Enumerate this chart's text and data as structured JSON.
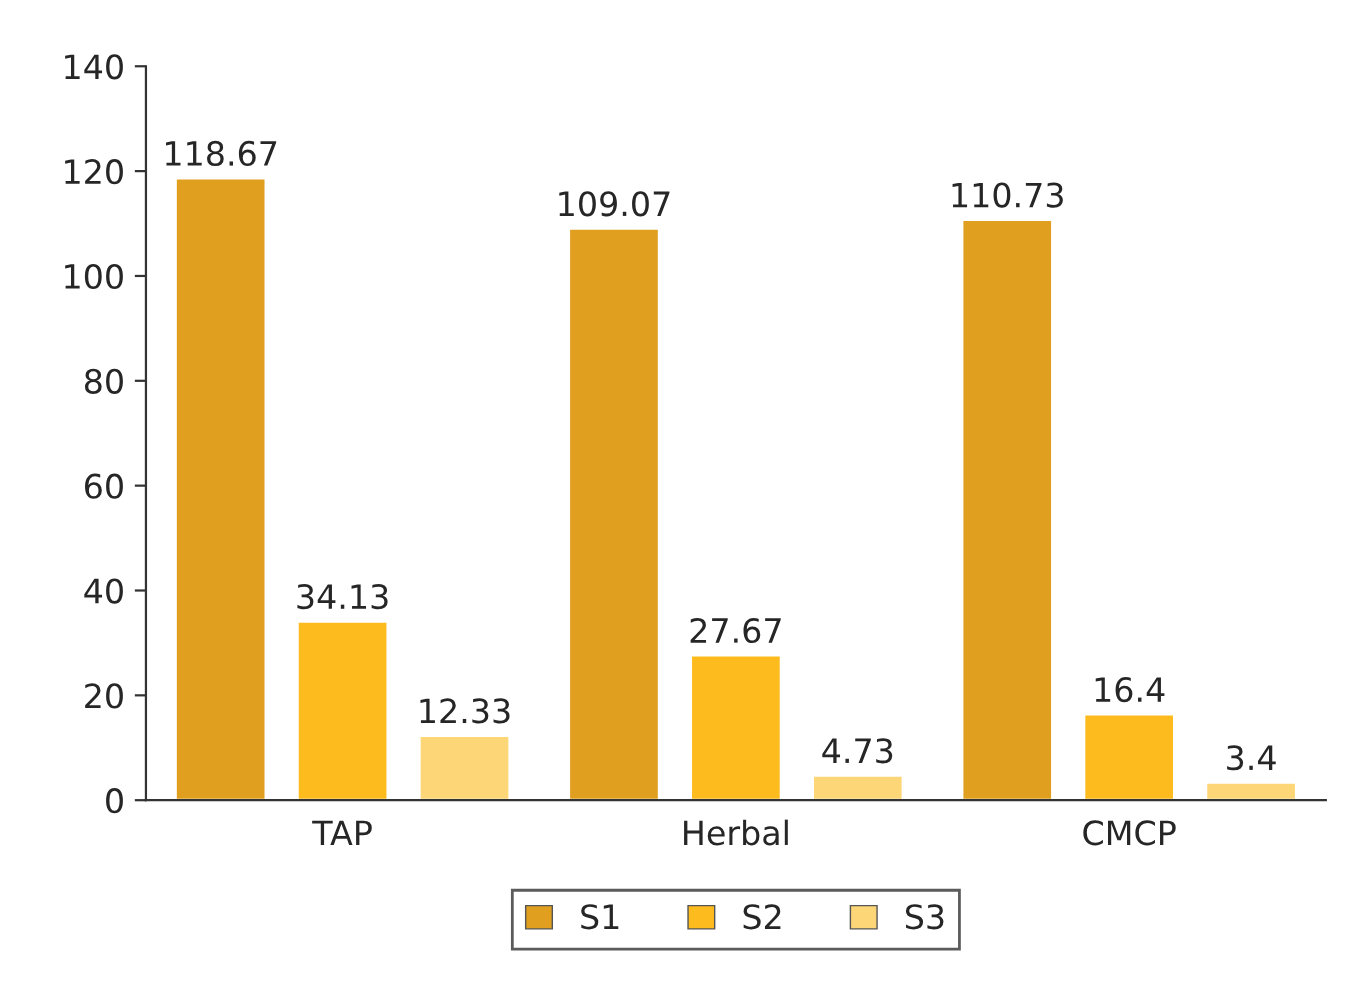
{
  "chart_data": {
    "type": "bar",
    "categories": [
      "TAP",
      "Herbal",
      "CMCP"
    ],
    "series": [
      {
        "name": "S1",
        "color": "#e09f1f",
        "values": [
          118.67,
          109.07,
          110.73
        ]
      },
      {
        "name": "S2",
        "color": "#fdbb1e",
        "values": [
          34.13,
          27.67,
          16.4
        ]
      },
      {
        "name": "S3",
        "color": "#fdd677",
        "values": [
          12.33,
          4.73,
          3.4
        ]
      }
    ],
    "ylim": [
      0,
      140
    ],
    "yticks": [
      0,
      20,
      40,
      60,
      80,
      100,
      120,
      140
    ],
    "grid": false,
    "legend": "bottom",
    "data_labels": true
  }
}
